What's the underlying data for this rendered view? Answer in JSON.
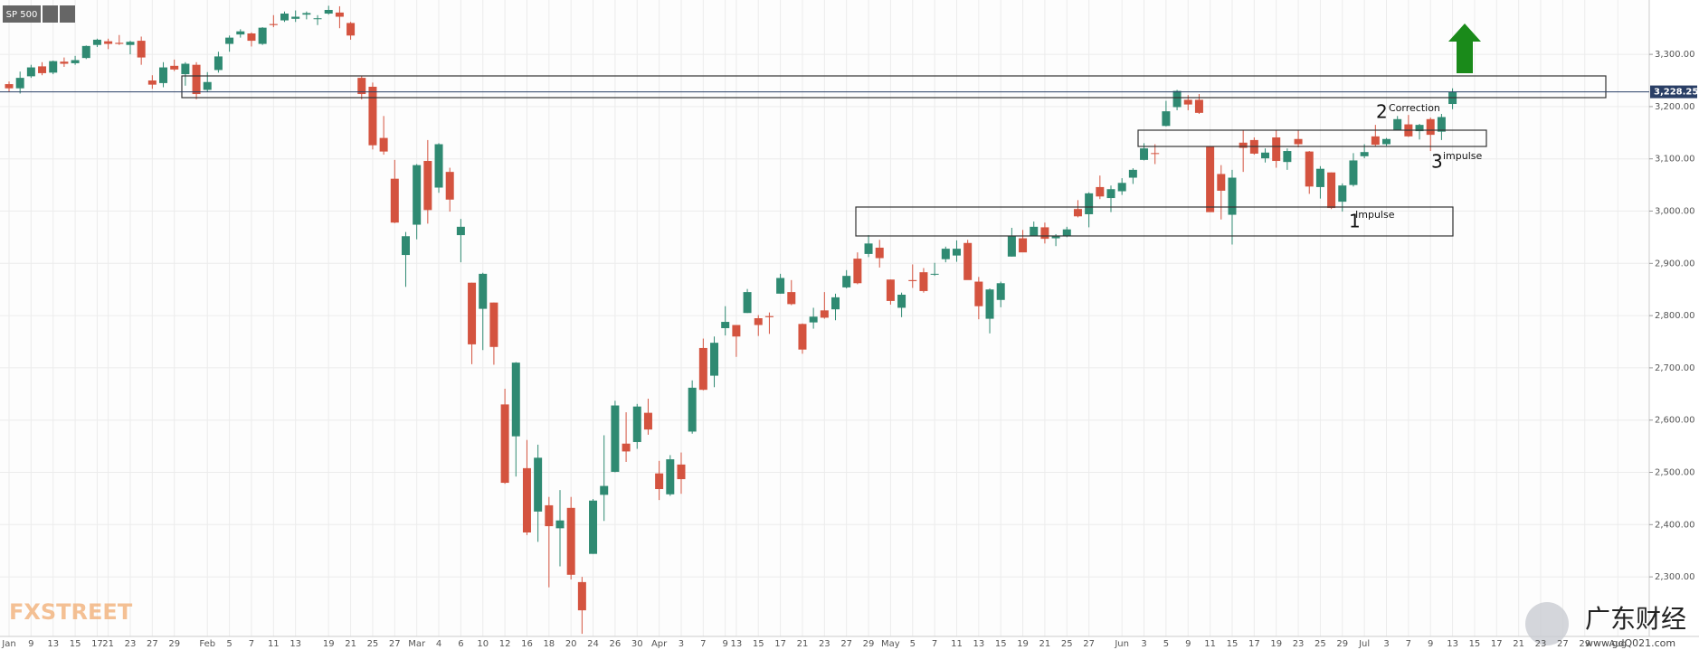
{
  "chart_data": {
    "type": "candlestick",
    "symbol": "SP 500",
    "categories": [
      "Jan",
      null,
      "9",
      null,
      "13",
      null,
      "15",
      null,
      "17",
      "21",
      null,
      "23",
      null,
      "27",
      null,
      "29",
      null,
      null,
      "Feb",
      null,
      "5",
      null,
      "7",
      null,
      "11",
      null,
      "13",
      null,
      null,
      "19",
      null,
      "21",
      null,
      "25",
      null,
      "27",
      null,
      "Mar",
      null,
      "4",
      null,
      "6",
      null,
      "10",
      null,
      "12",
      null,
      "16",
      null,
      "18",
      null,
      "20",
      null,
      "24",
      null,
      "26",
      null,
      "30",
      null,
      "Apr",
      null,
      "3",
      null,
      "7",
      null,
      "9",
      "13",
      null,
      "15",
      null,
      "17",
      null,
      "21",
      null,
      "23",
      null,
      "27",
      null,
      "29",
      null,
      "May",
      null,
      "5",
      null,
      "7",
      null,
      "11",
      null,
      "13",
      null,
      "15",
      null,
      "19",
      null,
      "21",
      null,
      "25",
      null,
      "27",
      null,
      null,
      "Jun",
      null,
      "3",
      null,
      "5",
      null,
      "9",
      null,
      "11",
      null,
      "15",
      null,
      "17",
      null,
      "19",
      null,
      "23",
      null,
      "25",
      null,
      "29",
      null,
      "Jul",
      null,
      "3",
      null,
      "7",
      null,
      "9",
      null,
      "13",
      null,
      "15",
      null,
      "17",
      null,
      "21",
      null,
      "23",
      null,
      "27",
      null,
      "29",
      null,
      null,
      "Aug"
    ],
    "open": [
      3243,
      3235,
      3258,
      3277,
      3265,
      3286,
      3283,
      3293,
      3318,
      3325,
      3322,
      3318,
      3326,
      3250,
      3245,
      3278,
      3262,
      3280,
      3232,
      3270,
      3320,
      3338,
      3340,
      3320,
      3358,
      3365,
      3368,
      3376,
      3368,
      3378,
      3380,
      3360,
      3255,
      3238,
      3140,
      3062,
      2916,
      2974,
      3096,
      3045,
      3075,
      2954,
      2863,
      2813,
      2825,
      2630,
      2569,
      2508,
      2425,
      2437,
      2393,
      2432,
      2290,
      2344,
      2457,
      2501,
      2555,
      2558,
      2614,
      2498,
      2458,
      2515,
      2578,
      2738,
      2685,
      2776,
      2782,
      2805,
      2795,
      2799,
      2842,
      2845,
      2784,
      2787,
      2810,
      2812,
      2854,
      2909,
      2918,
      2930,
      2869,
      2815,
      2868,
      2883,
      2879,
      2908,
      2915,
      2939,
      2865,
      2794,
      2830,
      2913,
      2948,
      2953,
      2969,
      2948,
      2953,
      3004,
      2994,
      3046,
      3025,
      3038,
      3064,
      3098,
      3111,
      3163,
      3199,
      3213,
      3213,
      3123,
      3071,
      2993,
      3131,
      3136,
      3101,
      3141,
      3094,
      3138,
      3114,
      3046,
      3074,
      3018,
      3050,
      3105,
      3143,
      3128,
      3155,
      3166,
      3153,
      3176,
      3152,
      3205,
      null,
      null,
      null,
      null,
      null,
      null,
      null,
      null,
      null,
      null,
      null,
      null,
      null,
      null,
      null
    ],
    "high": [
      3248,
      3267,
      3280,
      3285,
      3288,
      3294,
      3297,
      3317,
      3330,
      3330,
      3337,
      3326,
      3334,
      3260,
      3285,
      3290,
      3285,
      3285,
      3266,
      3305,
      3336,
      3348,
      3342,
      3352,
      3375,
      3382,
      3384,
      3382,
      3375,
      3393,
      3392,
      3362,
      3258,
      3246,
      3182,
      3098,
      2960,
      3090,
      3136,
      3130,
      3083,
      2985,
      2863,
      2882,
      2825,
      2660,
      2711,
      2562,
      2553,
      2453,
      2466,
      2453,
      2300,
      2449,
      2571,
      2637,
      2615,
      2631,
      2641,
      2522,
      2533,
      2538,
      2676,
      2756,
      2760,
      2818,
      2782,
      2851,
      2801,
      2806,
      2880,
      2868,
      2785,
      2815,
      2845,
      2842,
      2887,
      2921,
      2954,
      2945,
      2869,
      2844,
      2898,
      2891,
      2901,
      2932,
      2944,
      2945,
      2874,
      2852,
      2865,
      2968,
      2964,
      2980,
      2978,
      2956,
      2970,
      3021,
      3036,
      3068,
      3049,
      3063,
      3082,
      3130,
      3128,
      3211,
      3232,
      3222,
      3224,
      3123,
      3088,
      3079,
      3154,
      3141,
      3120,
      3155,
      3120,
      3154,
      3115,
      3086,
      3074,
      3053,
      3111,
      3128,
      3165,
      3140,
      3182,
      3184,
      3167,
      3179,
      3186,
      3235,
      null,
      null,
      null,
      null,
      null,
      null,
      null,
      null,
      null,
      null,
      null,
      null,
      null,
      null,
      null
    ],
    "low": [
      3228,
      3225,
      3255,
      3260,
      3262,
      3276,
      3280,
      3291,
      3314,
      3310,
      3318,
      3300,
      3280,
      3234,
      3237,
      3268,
      3240,
      3214,
      3228,
      3265,
      3305,
      3332,
      3315,
      3318,
      3352,
      3362,
      3362,
      3367,
      3356,
      3376,
      3350,
      3328,
      3214,
      3118,
      3108,
      2977,
      2855,
      2946,
      2976,
      3035,
      2999,
      2902,
      2707,
      2734,
      2706,
      2478,
      2492,
      2380,
      2367,
      2280,
      2320,
      2295,
      2191,
      2344,
      2407,
      2500,
      2520,
      2545,
      2572,
      2447,
      2455,
      2459,
      2574,
      2657,
      2663,
      2762,
      2721,
      2805,
      2761,
      2765,
      2842,
      2820,
      2727,
      2775,
      2794,
      2791,
      2852,
      2860,
      2912,
      2892,
      2821,
      2797,
      2853,
      2844,
      2876,
      2902,
      2903,
      2869,
      2793,
      2766,
      2816,
      2913,
      2922,
      2953,
      2938,
      2933,
      2950,
      2988,
      2969,
      3023,
      2998,
      3031,
      3052,
      3097,
      3090,
      3162,
      3193,
      3193,
      3186,
      2999,
      2984,
      2936,
      3075,
      3108,
      3093,
      3083,
      3079,
      3122,
      3033,
      3024,
      3004,
      2999,
      3047,
      3101,
      3124,
      3125,
      3155,
      3142,
      3137,
      3115,
      3136,
      3195,
      null,
      null,
      null,
      null,
      null,
      null,
      null,
      null,
      null,
      null,
      null,
      null,
      null,
      null,
      null
    ],
    "close": [
      3235,
      3255,
      3275,
      3264,
      3287,
      3282,
      3289,
      3316,
      3328,
      3320,
      3320,
      3324,
      3294,
      3242,
      3275,
      3271,
      3282,
      3224,
      3247,
      3296,
      3332,
      3344,
      3326,
      3351,
      3356,
      3378,
      3372,
      3379,
      3369,
      3385,
      3372,
      3336,
      3224,
      3126,
      3114,
      2978,
      2952,
      3088,
      3002,
      3128,
      3022,
      2970,
      2745,
      2880,
      2740,
      2480,
      2710,
      2385,
      2528,
      2397,
      2408,
      2304,
      2236,
      2446,
      2474,
      2628,
      2540,
      2626,
      2582,
      2468,
      2525,
      2487,
      2662,
      2658,
      2748,
      2788,
      2760,
      2845,
      2782,
      2797,
      2872,
      2822,
      2735,
      2798,
      2796,
      2835,
      2876,
      2862,
      2938,
      2910,
      2828,
      2840,
      2866,
      2847,
      2880,
      2928,
      2928,
      2868,
      2818,
      2850,
      2862,
      2952,
      2921,
      2970,
      2947,
      2953,
      2965,
      2990,
      3034,
      3028,
      3042,
      3054,
      3079,
      3120,
      3110,
      3191,
      3230,
      3204,
      3188,
      2998,
      3039,
      3064,
      3121,
      3110,
      3112,
      3096,
      3115,
      3128,
      3047,
      3081,
      3006,
      3049,
      3097,
      3113,
      3127,
      3138,
      3176,
      3143,
      3165,
      3146,
      3180,
      3228.25,
      null,
      null,
      null,
      null,
      null,
      null,
      null,
      null,
      null,
      null,
      null,
      null,
      null,
      null,
      null
    ],
    "up_color": "#2f8a72",
    "down_color": "#d4533f",
    "ylim": [
      2186,
      3404
    ],
    "yticks": [
      {
        "value": 2300,
        "label": "2,300.00"
      },
      {
        "value": 2400,
        "label": "2,400.00"
      },
      {
        "value": 2500,
        "label": "2,500.00"
      },
      {
        "value": 2600,
        "label": "2,600.00"
      },
      {
        "value": 2700,
        "label": "2,700.00"
      },
      {
        "value": 2800,
        "label": "2,800.00"
      },
      {
        "value": 2900,
        "label": "2,900.00"
      },
      {
        "value": 3000,
        "label": "3,000.00"
      },
      {
        "value": 3100,
        "label": "3,100.00"
      },
      {
        "value": 3200,
        "label": "3,200.00"
      },
      {
        "value": 3300,
        "label": "3,300.00"
      }
    ],
    "grid": true,
    "last_price": {
      "value": 3228.25,
      "label": "3,228.25"
    },
    "annotations": {
      "n1": "1",
      "impulse1": "Impulse",
      "n2": "2",
      "correction": "Correction",
      "n3": "3",
      "impulse3": "impulse"
    },
    "watermark": "FXSTREET",
    "watermark_cn": "广东财经",
    "watermark_url": "www.gdQ021.com"
  }
}
